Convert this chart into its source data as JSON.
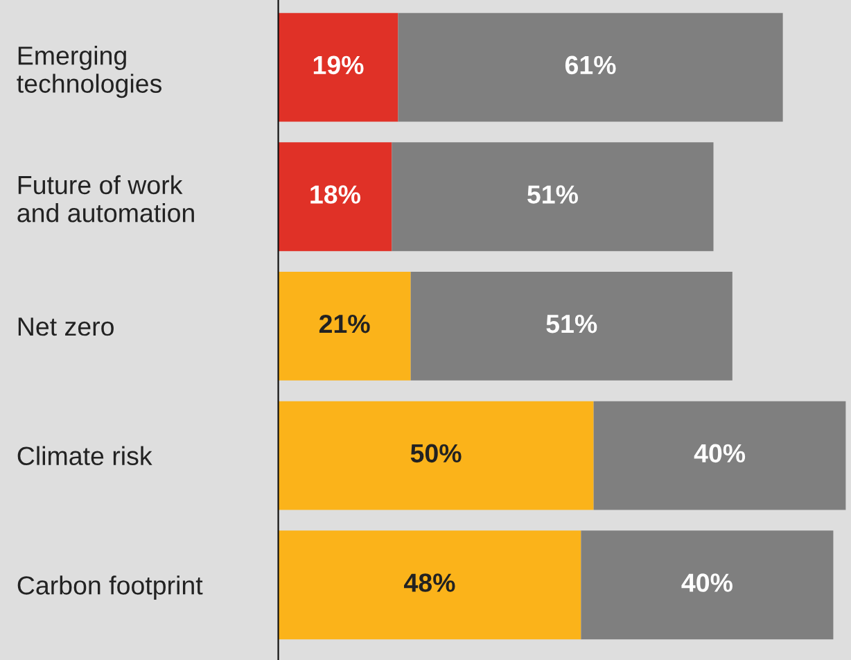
{
  "chart_data": {
    "type": "bar",
    "orientation": "horizontal",
    "stacked": true,
    "tick_labels": "y",
    "grid": false,
    "legend": false,
    "categories": [
      "Emerging\ntechnologies",
      "Future of work\nand automation",
      "Net zero",
      "Climate risk",
      "Carbon footprint"
    ],
    "series": [
      {
        "colors": [
          "#e03127",
          "#e03127",
          "#fbb31a",
          "#fbb31a",
          "#fbb31a"
        ],
        "values": [
          19,
          18,
          21,
          50,
          48
        ],
        "value_labels": [
          "19%",
          "18%",
          "21%",
          "50%",
          "48%"
        ]
      },
      {
        "color": "#7f7f7f",
        "values": [
          61,
          51,
          51,
          40,
          40
        ],
        "value_labels": [
          "61%",
          "51%",
          "51%",
          "40%",
          "40%"
        ]
      }
    ]
  }
}
